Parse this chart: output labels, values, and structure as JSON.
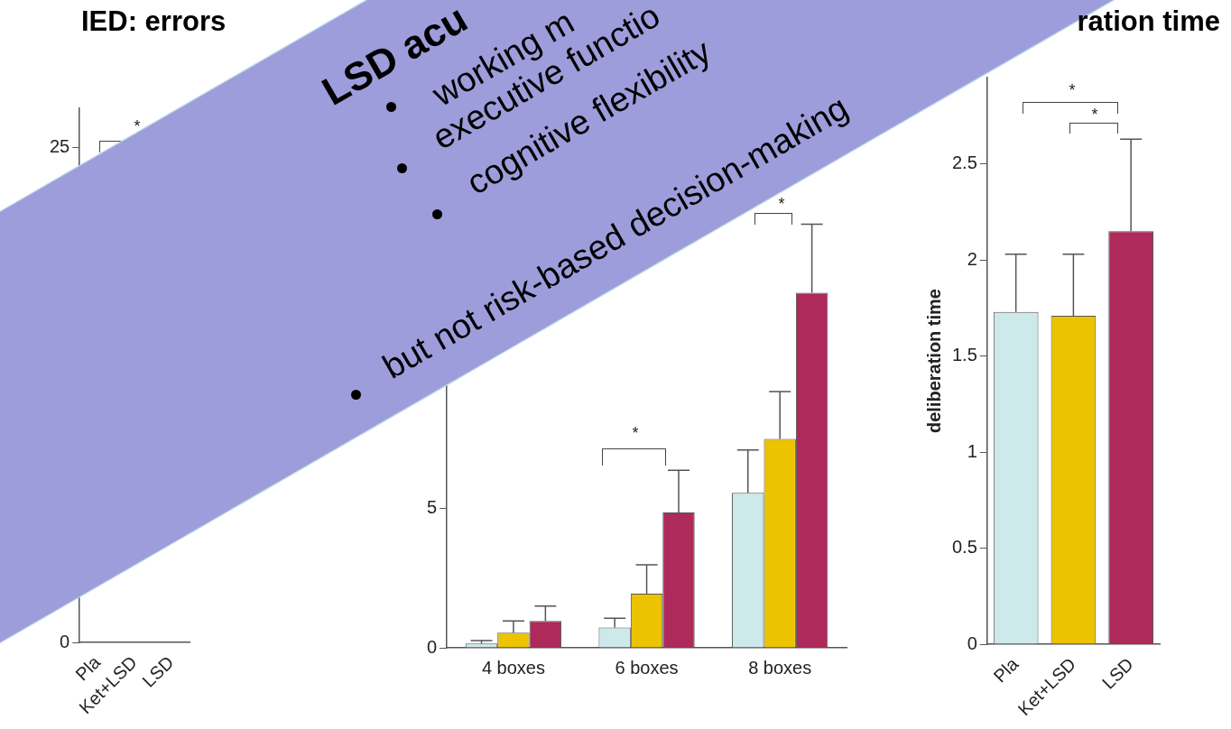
{
  "chart_data": [
    {
      "type": "bar",
      "title": "IED: errors",
      "categories": [
        "Pla",
        "Ket+LSD",
        "LSD"
      ],
      "values": [
        null,
        null,
        null
      ],
      "colors": [
        "#cde9ea",
        "#ecc300",
        "#ad2a5b"
      ],
      "ylim": [
        0,
        27
      ],
      "yticks": [
        0,
        25
      ],
      "annotations": [
        "*"
      ]
    },
    {
      "type": "bar",
      "categories": [
        "4 boxes",
        "6 boxes",
        "8 boxes"
      ],
      "ylim": [
        0,
        17
      ],
      "yticks": [
        0,
        5
      ],
      "series": [
        {
          "color": "#cde9ea",
          "values": [
            0.15,
            0.73,
            5.56
          ],
          "errors": [
            [
              0.15,
              0.26
            ],
            [
              0.73,
              1.06
            ],
            [
              5.56,
              7.1
            ]
          ]
        },
        {
          "color": "#ecc300",
          "values": [
            0.54,
            1.94,
            7.5
          ],
          "errors": [
            [
              0.54,
              0.96
            ],
            [
              1.94,
              2.98
            ],
            [
              7.5,
              9.2
            ]
          ]
        },
        {
          "color": "#ad2a5b",
          "values": [
            0.96,
            4.86,
            12.74
          ],
          "errors": [
            [
              0.96,
              1.5
            ],
            [
              4.86,
              6.37
            ],
            [
              12.74,
              15.2
            ]
          ]
        }
      ],
      "annotations": [
        "*",
        "*",
        "LSD acu",
        "working m",
        "executive functio",
        "cognitive flexibility",
        "but not risk-based decision-making"
      ]
    },
    {
      "type": "bar",
      "title": "ration time",
      "ylabel": "deliberation time",
      "categories": [
        "Pla",
        "Ket+LSD",
        "LSD"
      ],
      "values": [
        1.73,
        1.71,
        2.15
      ],
      "errors": [
        [
          1.73,
          2.03
        ],
        [
          1.71,
          2.03
        ],
        [
          2.15,
          2.63
        ]
      ],
      "colors": [
        "#cde9ea",
        "#ecc300",
        "#ad2a5b"
      ],
      "ylim": [
        0,
        2.95
      ],
      "yticks": [
        0,
        0.5,
        1,
        1.5,
        2,
        2.5
      ],
      "annotations": [
        "*",
        "*"
      ]
    }
  ]
}
